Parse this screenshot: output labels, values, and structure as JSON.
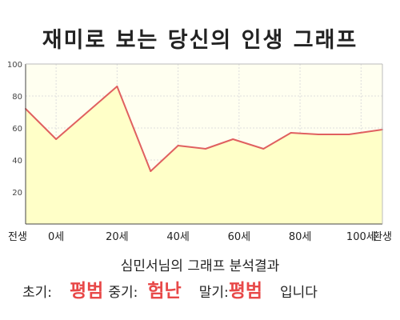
{
  "header": {
    "title": "재미로 보는 당신의 인생 그래프"
  },
  "chart_data": {
    "type": "area",
    "x_tick_labels": [
      "전생",
      "0세",
      "20세",
      "40세",
      "60세",
      "80세",
      "100세",
      "환생"
    ],
    "y_ticks": [
      20,
      40,
      60,
      80,
      100
    ],
    "ylim": [
      0,
      100
    ],
    "grid": true,
    "legend": false,
    "x": [
      -10,
      0,
      20,
      31,
      40,
      49,
      58,
      68,
      77,
      86,
      96,
      107
    ],
    "values": [
      72,
      53,
      86,
      33,
      49,
      47,
      53,
      47,
      57,
      56,
      56,
      59
    ],
    "colors": {
      "line": "#e06060",
      "fill": "#ffffc8",
      "plot_bg": "#fffff0",
      "grid": "#dddddd"
    }
  },
  "result": {
    "subtitle": "심민서님의 그래프 분석결과",
    "early_label": "초기:",
    "early_value": "평범",
    "mid_label": "중기:",
    "mid_value": "험난",
    "late_label": "말기:",
    "late_value": "평범",
    "ending": "입니다"
  }
}
